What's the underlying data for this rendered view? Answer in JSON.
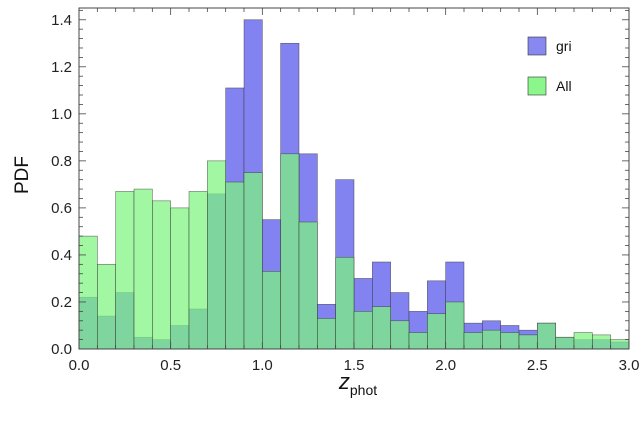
{
  "chart_data": {
    "type": "bar",
    "subtype": "overlaid-histogram",
    "xlabel_main": "z",
    "xlabel_sub": "phot",
    "ylabel": "PDF",
    "xlim": [
      0.0,
      3.0
    ],
    "ylim": [
      0.0,
      1.45
    ],
    "x_ticks": [
      "0.0",
      "0.5",
      "1.0",
      "1.5",
      "2.0",
      "2.5",
      "3.0"
    ],
    "y_ticks": [
      "0.0",
      "0.2",
      "0.4",
      "0.6",
      "0.8",
      "1.0",
      "1.2",
      "1.4"
    ],
    "bin_width": 0.1,
    "bin_starts": [
      0.0,
      0.1,
      0.2,
      0.3,
      0.4,
      0.5,
      0.6,
      0.7,
      0.8,
      0.9,
      1.0,
      1.1,
      1.2,
      1.3,
      1.4,
      1.5,
      1.6,
      1.7,
      1.8,
      1.9,
      2.0,
      2.1,
      2.2,
      2.3,
      2.4,
      2.5,
      2.6,
      2.7,
      2.8,
      2.9
    ],
    "legend_position": "top-right",
    "grid": false,
    "series": [
      {
        "name": "gri",
        "color": "#7b7bf0",
        "values": [
          0.22,
          0.14,
          0.24,
          0.05,
          0.04,
          0.1,
          0.17,
          0.66,
          1.11,
          1.4,
          0.55,
          1.3,
          0.83,
          0.19,
          0.72,
          0.3,
          0.37,
          0.24,
          0.16,
          0.29,
          0.37,
          0.11,
          0.12,
          0.1,
          0.08,
          0.11,
          0.05,
          0.04,
          0.04,
          0.03
        ]
      },
      {
        "name": "All",
        "color": "#7ef57e",
        "values": [
          0.48,
          0.36,
          0.67,
          0.68,
          0.63,
          0.6,
          0.67,
          0.8,
          0.71,
          0.75,
          0.33,
          0.83,
          0.54,
          0.13,
          0.39,
          0.16,
          0.18,
          0.12,
          0.07,
          0.15,
          0.2,
          0.07,
          0.08,
          0.07,
          0.06,
          0.11,
          0.05,
          0.07,
          0.06,
          0.04
        ]
      }
    ]
  }
}
